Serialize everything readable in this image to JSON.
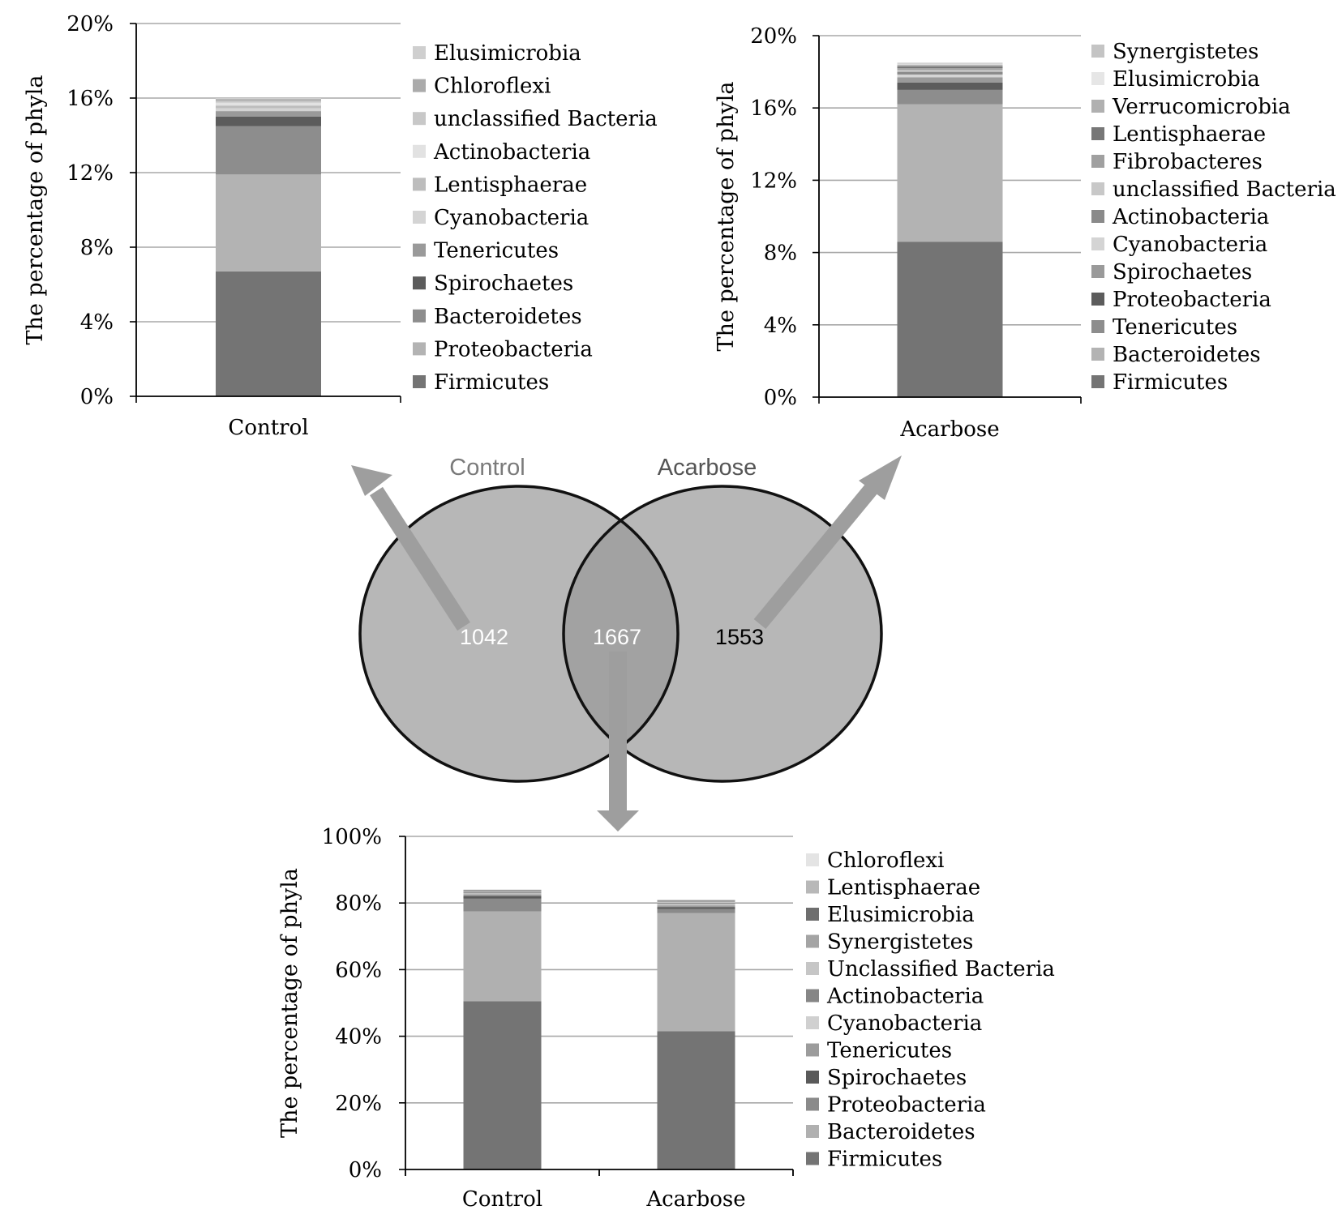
{
  "colors": {
    "gridline": "#a8a8a8",
    "axis": "#000000",
    "circle_fill": "#b7b7b7",
    "intersection_fill": "#9f9f9f",
    "circle_stroke": "#111111",
    "arrow": "#9e9e9e",
    "venn_label": "#7a7a7a",
    "venn_label_dark": "#555555"
  },
  "venn": {
    "left_label": "Control",
    "right_label": "Acarbose",
    "left_only": "1042",
    "shared": "1667",
    "right_only": "1553"
  },
  "chart_data": [
    {
      "id": "control-unique",
      "type": "bar",
      "stacked": true,
      "categories": [
        "Control"
      ],
      "ylabel": "The percentage of phyla",
      "xlabel": "",
      "ylim": [
        0,
        20
      ],
      "yticks": [
        "0%",
        "4%",
        "8%",
        "12%",
        "16%",
        "20%"
      ],
      "ytick_values": [
        0,
        4,
        8,
        12,
        16,
        20
      ],
      "grid": true,
      "legend_position": "right",
      "series": [
        {
          "name": "Firmicutes",
          "values": [
            6.7
          ],
          "color": "#747474"
        },
        {
          "name": "Proteobacteria",
          "values": [
            5.2
          ],
          "color": "#b3b3b3"
        },
        {
          "name": "Bacteroidetes",
          "values": [
            2.6
          ],
          "color": "#8d8d8d"
        },
        {
          "name": "Spirochaetes",
          "values": [
            0.5
          ],
          "color": "#5c5c5c"
        },
        {
          "name": "Tenericutes",
          "values": [
            0.3
          ],
          "color": "#9a9a9a"
        },
        {
          "name": "Cyanobacteria",
          "values": [
            0.15
          ],
          "color": "#d4d4d4"
        },
        {
          "name": "Lentisphaerae",
          "values": [
            0.15
          ],
          "color": "#bdbdbd"
        },
        {
          "name": "Actinobacteria",
          "values": [
            0.15
          ],
          "color": "#e2e2e2"
        },
        {
          "name": "unclassified Bacteria",
          "values": [
            0.1
          ],
          "color": "#c8c8c8"
        },
        {
          "name": "Chloroflexi",
          "values": [
            0.1
          ],
          "color": "#ababab"
        },
        {
          "name": "Elusimicrobia",
          "values": [
            0.05
          ],
          "color": "#cfcfcf"
        }
      ]
    },
    {
      "id": "acarbose-unique",
      "type": "bar",
      "stacked": true,
      "categories": [
        "Acarbose"
      ],
      "ylabel": "The percentage of phyla",
      "xlabel": "",
      "ylim": [
        0,
        20
      ],
      "yticks": [
        "0%",
        "4%",
        "8%",
        "12%",
        "16%",
        "20%"
      ],
      "ytick_values": [
        0,
        4,
        8,
        12,
        16,
        20
      ],
      "grid": true,
      "legend_position": "right",
      "series": [
        {
          "name": "Firmicutes",
          "values": [
            8.6
          ],
          "color": "#747474"
        },
        {
          "name": "Bacteroidetes",
          "values": [
            7.6
          ],
          "color": "#b3b3b3"
        },
        {
          "name": "Tenericutes",
          "values": [
            0.8
          ],
          "color": "#8d8d8d"
        },
        {
          "name": "Proteobacteria",
          "values": [
            0.4
          ],
          "color": "#5c5c5c"
        },
        {
          "name": "Spirochaetes",
          "values": [
            0.3
          ],
          "color": "#9a9a9a"
        },
        {
          "name": "Cyanobacteria",
          "values": [
            0.15
          ],
          "color": "#d4d4d4"
        },
        {
          "name": "Actinobacteria",
          "values": [
            0.15
          ],
          "color": "#8a8a8a"
        },
        {
          "name": "unclassified Bacteria",
          "values": [
            0.1
          ],
          "color": "#c8c8c8"
        },
        {
          "name": "Fibrobacteres",
          "values": [
            0.1
          ],
          "color": "#a0a0a0"
        },
        {
          "name": "Lentisphaerae",
          "values": [
            0.1
          ],
          "color": "#777777"
        },
        {
          "name": "Verrucomicrobia",
          "values": [
            0.1
          ],
          "color": "#b0b0b0"
        },
        {
          "name": "Elusimicrobia",
          "values": [
            0.05
          ],
          "color": "#e6e6e6"
        },
        {
          "name": "Synergistetes",
          "values": [
            0.05
          ],
          "color": "#c4c4c4"
        }
      ]
    },
    {
      "id": "shared",
      "type": "bar",
      "stacked": true,
      "categories": [
        "Control",
        "Acarbose"
      ],
      "ylabel": "The percentage of phyla",
      "xlabel": "",
      "ylim": [
        0,
        100
      ],
      "yticks": [
        "0%",
        "20%",
        "40%",
        "60%",
        "80%",
        "100%"
      ],
      "ytick_values": [
        0,
        20,
        40,
        60,
        80,
        100
      ],
      "grid": true,
      "legend_position": "right",
      "series": [
        {
          "name": "Firmicutes",
          "values": [
            50.5,
            41.5
          ],
          "color": "#747474"
        },
        {
          "name": "Bacteroidetes",
          "values": [
            27,
            35.5
          ],
          "color": "#b0b0b0"
        },
        {
          "name": "Proteobacteria",
          "values": [
            3.8,
            1.2
          ],
          "color": "#8a8a8a"
        },
        {
          "name": "Spirochaetes",
          "values": [
            0.8,
            0.6
          ],
          "color": "#5a5a5a"
        },
        {
          "name": "Tenericutes",
          "values": [
            0.5,
            0.5
          ],
          "color": "#9c9c9c"
        },
        {
          "name": "Cyanobacteria",
          "values": [
            0.3,
            0.4
          ],
          "color": "#d0d0d0"
        },
        {
          "name": "Actinobacteria",
          "values": [
            0.3,
            0.3
          ],
          "color": "#868686"
        },
        {
          "name": "Unclassified Bacteria",
          "values": [
            0.2,
            0.3
          ],
          "color": "#c6c6c6"
        },
        {
          "name": "Synergistetes",
          "values": [
            0.2,
            0.2
          ],
          "color": "#a4a4a4"
        },
        {
          "name": "Elusimicrobia",
          "values": [
            0.2,
            0.2
          ],
          "color": "#6e6e6e"
        },
        {
          "name": "Lentisphaerae",
          "values": [
            0.2,
            0.2
          ],
          "color": "#b8b8b8"
        },
        {
          "name": "Chloroflexi",
          "values": [
            0.1,
            0.1
          ],
          "color": "#e4e4e4"
        }
      ]
    }
  ]
}
